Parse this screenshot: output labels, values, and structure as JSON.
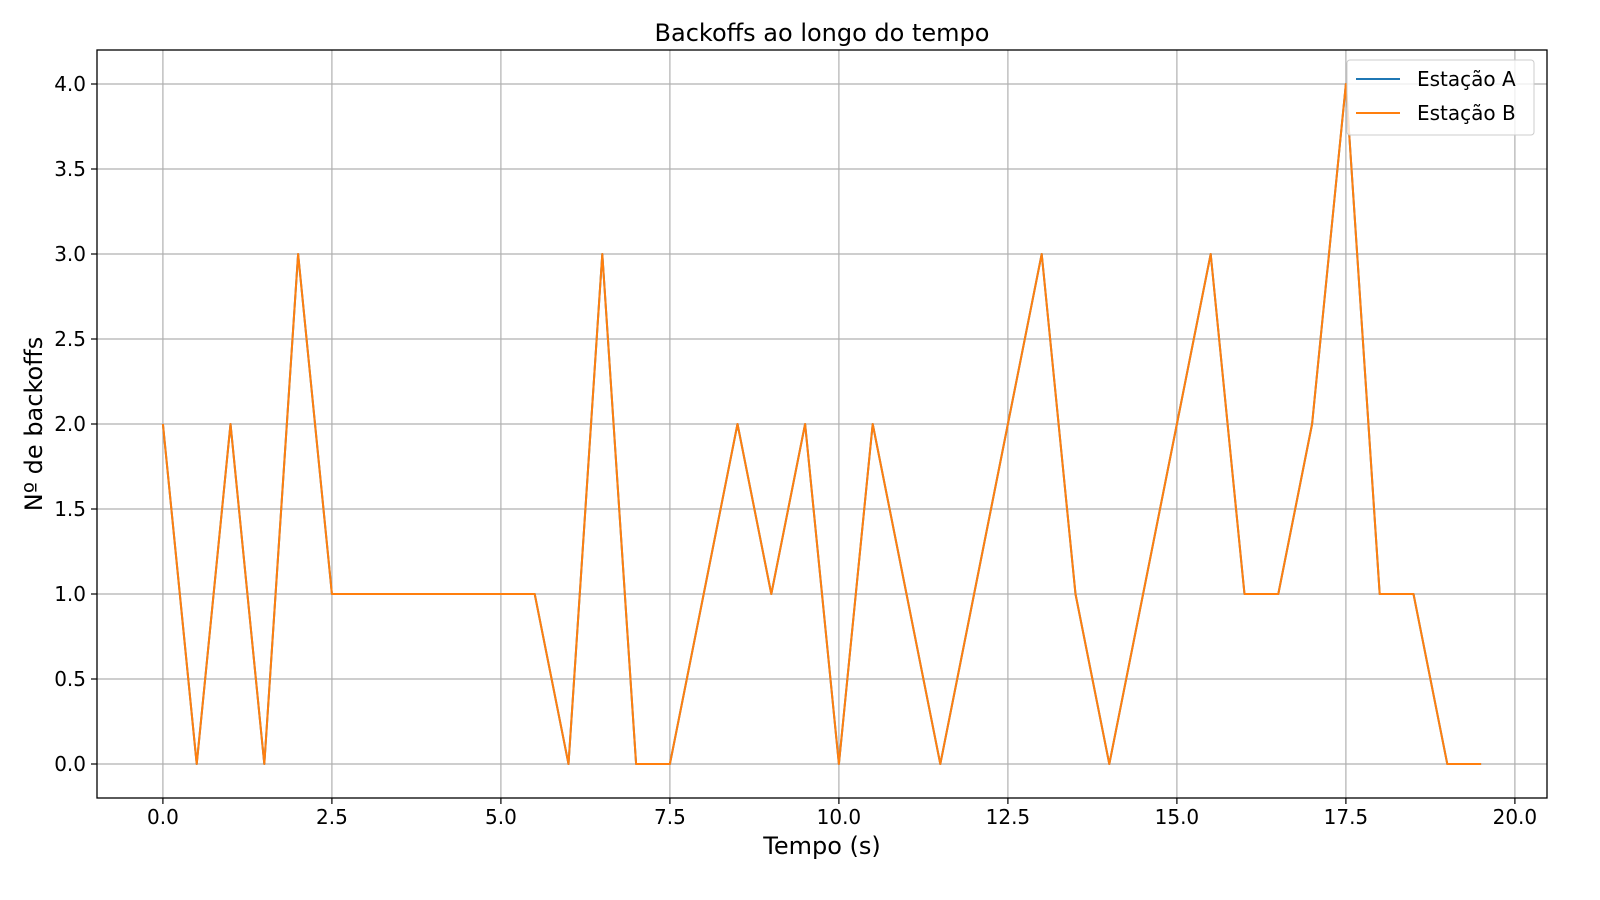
{
  "chart_data": {
    "type": "line",
    "title": "Backoffs ao longo do tempo",
    "xlabel": "Tempo (s)",
    "ylabel": "Nº de backoffs",
    "xlim": [
      -0.975,
      20.475
    ],
    "ylim": [
      -0.2,
      4.2
    ],
    "xticks": [
      0.0,
      2.5,
      5.0,
      7.5,
      10.0,
      12.5,
      15.0,
      17.5,
      20.0
    ],
    "xtick_labels": [
      "0.0",
      "2.5",
      "5.0",
      "7.5",
      "10.0",
      "12.5",
      "15.0",
      "17.5",
      "20.0"
    ],
    "yticks": [
      0.0,
      0.5,
      1.0,
      1.5,
      2.0,
      2.5,
      3.0,
      3.5,
      4.0
    ],
    "ytick_labels": [
      "0.0",
      "0.5",
      "1.0",
      "1.5",
      "2.0",
      "2.5",
      "3.0",
      "3.5",
      "4.0"
    ],
    "grid": true,
    "legend_position": "top-right",
    "x": [
      0.0,
      0.5,
      1.0,
      1.5,
      2.0,
      2.5,
      3.0,
      3.5,
      4.0,
      4.5,
      5.0,
      5.5,
      6.0,
      6.5,
      7.0,
      7.5,
      8.0,
      8.5,
      9.0,
      9.5,
      10.0,
      10.5,
      11.0,
      11.5,
      12.0,
      12.5,
      13.0,
      13.5,
      14.0,
      14.5,
      15.0,
      15.5,
      16.0,
      16.5,
      17.0,
      17.5,
      18.0,
      18.5,
      19.0,
      19.5
    ],
    "series": [
      {
        "name": "Estação A",
        "color": "#1f77b4",
        "values": [
          2,
          0,
          2,
          0,
          3,
          1,
          1,
          1,
          1,
          1,
          1,
          1,
          0,
          3,
          0,
          0,
          1,
          2,
          1,
          2,
          0,
          2,
          1,
          0,
          1,
          2,
          3,
          1,
          0,
          1,
          2,
          3,
          1,
          1,
          2,
          4,
          1,
          1,
          0,
          0
        ]
      },
      {
        "name": "Estação B",
        "color": "#ff7f0e",
        "values": [
          2,
          0,
          2,
          0,
          3,
          1,
          1,
          1,
          1,
          1,
          1,
          1,
          0,
          3,
          0,
          0,
          1,
          2,
          1,
          2,
          0,
          2,
          1,
          0,
          1,
          2,
          3,
          1,
          0,
          1,
          2,
          3,
          1,
          1,
          2,
          4,
          1,
          1,
          0,
          0
        ]
      }
    ]
  }
}
